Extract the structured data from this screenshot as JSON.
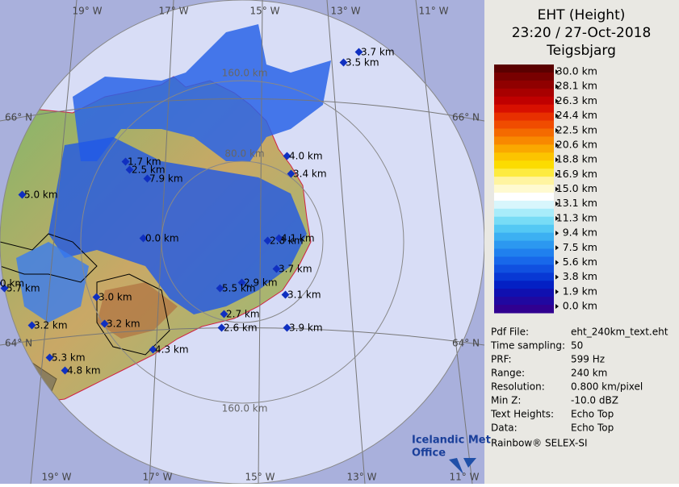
{
  "map": {
    "longitude_labels_top": [
      "19° W",
      "17° W",
      "15° W",
      "13° W",
      "11° W"
    ],
    "longitude_labels_bottom": [
      "19° W",
      "17° W",
      "15° W",
      "13° W",
      "11° W"
    ],
    "latitude_labels_left": [
      "66° N",
      "64° N"
    ],
    "latitude_labels_right": [
      "66° N",
      "64° N"
    ],
    "range_labels": [
      "160.0 km",
      "80.0 km",
      "160.0 km"
    ],
    "echo_top_labels": [
      "3.7 km",
      "3.5 km",
      "4.0 km",
      "3.4 km",
      "1.7 km",
      "2.5 km",
      "7.9 km",
      "5.0 km",
      "0.0 km",
      "2.8 km",
      "4.1 km",
      "3.7 km",
      "2.9 km",
      "5.5 km",
      "3.1 km",
      "5.7 km",
      "0 km",
      "3.0 km",
      "2.7 km",
      "2.6 km",
      "3.9 km",
      "3.2 km",
      "3.2 km",
      "4.3 km",
      "5.3 km",
      "4.8 km"
    ]
  },
  "legend": {
    "title": "EHT (Height)",
    "time": "23:20 / 27-Oct-2018",
    "site": "Teigsbjarg",
    "scale_labels": [
      "30.0 km",
      "28.1 km",
      "26.3 km",
      "24.4 km",
      "22.5 km",
      "20.6 km",
      "18.8 km",
      "16.9 km",
      "15.0 km",
      "13.1 km",
      "11.3 km",
      "9.4 km",
      "7.5 km",
      "5.6 km",
      "3.8 km",
      "1.9 km",
      "0.0 km"
    ]
  },
  "info": {
    "rows": [
      [
        "Pdf File:",
        "eht_240km_text.eht"
      ],
      [
        "Time sampling:",
        "50"
      ],
      [
        "PRF:",
        "599 Hz"
      ],
      [
        "Range:",
        "240 km"
      ],
      [
        "Resolution:",
        "0.800 km/pixel"
      ],
      [
        "Min Z:",
        "-10.0 dBZ"
      ],
      [
        "Text Heights:",
        "Echo Top"
      ],
      [
        "Data:",
        "Echo Top"
      ]
    ],
    "footer": "Rainbow® SELEX-SI"
  },
  "logo": {
    "line1": "Icelandic Met",
    "line2": "Office"
  }
}
